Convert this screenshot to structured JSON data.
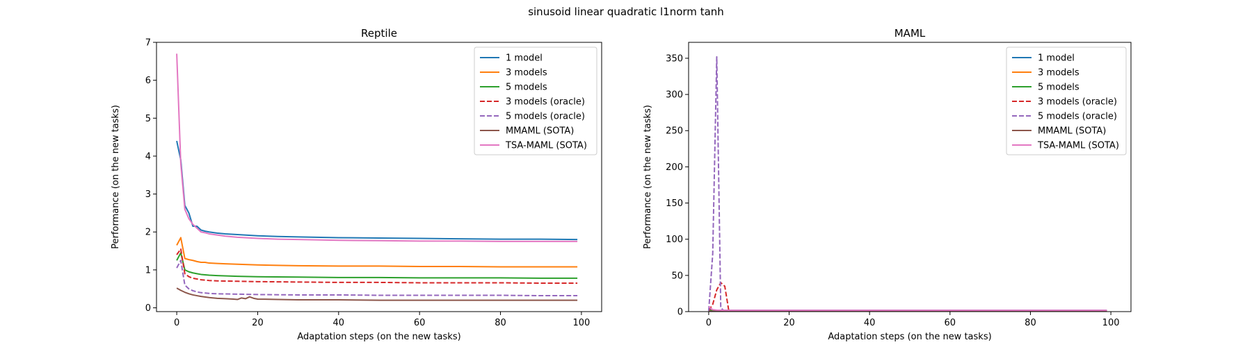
{
  "suptitle": "sinusoid linear quadratic l1norm tanh",
  "chart_data": [
    {
      "type": "line",
      "title": "Reptile",
      "xlabel": "Adaptation steps (on the new tasks)",
      "ylabel": "Performance (on the new tasks)",
      "xlim": [
        -5,
        105
      ],
      "ylim": [
        -0.1,
        7
      ],
      "xticks": [
        0,
        20,
        40,
        60,
        80,
        100
      ],
      "yticks": [
        0,
        1,
        2,
        3,
        4,
        5,
        6,
        7
      ],
      "grid": false,
      "legend_position": "upper right",
      "series": [
        {
          "name": "1 model",
          "color": "#1f77b4",
          "dash": "solid",
          "x": [
            0,
            1,
            2,
            3,
            4,
            5,
            6,
            7,
            8,
            10,
            12,
            15,
            20,
            25,
            30,
            40,
            50,
            60,
            70,
            80,
            90,
            99
          ],
          "y": [
            4.4,
            3.9,
            2.7,
            2.5,
            2.15,
            2.15,
            2.05,
            2.02,
            2.0,
            1.97,
            1.95,
            1.93,
            1.9,
            1.88,
            1.87,
            1.85,
            1.84,
            1.83,
            1.82,
            1.81,
            1.81,
            1.8
          ]
        },
        {
          "name": "3 models",
          "color": "#ff7f0e",
          "dash": "solid",
          "x": [
            0,
            1,
            2,
            3,
            4,
            5,
            6,
            7,
            8,
            10,
            12,
            15,
            20,
            25,
            30,
            40,
            50,
            60,
            70,
            80,
            90,
            99
          ],
          "y": [
            1.65,
            1.85,
            1.3,
            1.27,
            1.25,
            1.22,
            1.2,
            1.2,
            1.18,
            1.17,
            1.16,
            1.15,
            1.13,
            1.12,
            1.11,
            1.1,
            1.1,
            1.09,
            1.09,
            1.08,
            1.08,
            1.08
          ]
        },
        {
          "name": "5 models",
          "color": "#2ca02c",
          "dash": "solid",
          "x": [
            0,
            1,
            2,
            3,
            4,
            5,
            6,
            8,
            10,
            15,
            20,
            30,
            40,
            50,
            60,
            70,
            80,
            90,
            99
          ],
          "y": [
            1.25,
            1.45,
            1.0,
            0.95,
            0.92,
            0.9,
            0.88,
            0.86,
            0.85,
            0.83,
            0.82,
            0.81,
            0.8,
            0.8,
            0.79,
            0.79,
            0.79,
            0.78,
            0.78
          ]
        },
        {
          "name": "3 models (oracle)",
          "color": "#d62728",
          "dash": "dashed",
          "x": [
            0,
            1,
            2,
            3,
            4,
            5,
            6,
            8,
            10,
            15,
            20,
            30,
            40,
            50,
            60,
            70,
            80,
            90,
            99
          ],
          "y": [
            1.4,
            1.55,
            0.9,
            0.82,
            0.78,
            0.76,
            0.74,
            0.72,
            0.71,
            0.7,
            0.69,
            0.68,
            0.67,
            0.67,
            0.66,
            0.66,
            0.66,
            0.65,
            0.65
          ]
        },
        {
          "name": "5 models (oracle)",
          "color": "#9467bd",
          "dash": "dashed",
          "x": [
            0,
            1,
            2,
            3,
            4,
            5,
            6,
            8,
            10,
            15,
            20,
            30,
            40,
            50,
            60,
            70,
            80,
            90,
            99
          ],
          "y": [
            1.05,
            1.25,
            0.6,
            0.5,
            0.45,
            0.42,
            0.4,
            0.38,
            0.37,
            0.36,
            0.35,
            0.34,
            0.34,
            0.33,
            0.33,
            0.33,
            0.33,
            0.32,
            0.32
          ]
        },
        {
          "name": "MMAML (SOTA)",
          "color": "#8c564b",
          "dash": "solid",
          "x": [
            0,
            1,
            2,
            3,
            4,
            5,
            6,
            8,
            10,
            12,
            14,
            15,
            16,
            17,
            18,
            19,
            20,
            25,
            30,
            40,
            50,
            60,
            70,
            80,
            90,
            99
          ],
          "y": [
            0.52,
            0.46,
            0.41,
            0.37,
            0.34,
            0.32,
            0.3,
            0.27,
            0.25,
            0.24,
            0.23,
            0.22,
            0.26,
            0.24,
            0.29,
            0.25,
            0.23,
            0.22,
            0.21,
            0.21,
            0.2,
            0.2,
            0.2,
            0.2,
            0.2,
            0.2
          ]
        },
        {
          "name": "TSA-MAML (SOTA)",
          "color": "#e377c2",
          "dash": "solid",
          "x": [
            0,
            1,
            2,
            3,
            4,
            5,
            6,
            7,
            8,
            10,
            12,
            15,
            20,
            25,
            30,
            40,
            50,
            60,
            70,
            80,
            90,
            99
          ],
          "y": [
            6.7,
            3.8,
            2.6,
            2.35,
            2.2,
            2.1,
            2.0,
            1.98,
            1.95,
            1.92,
            1.89,
            1.86,
            1.83,
            1.81,
            1.8,
            1.78,
            1.77,
            1.76,
            1.76,
            1.75,
            1.75,
            1.75
          ]
        }
      ]
    },
    {
      "type": "line",
      "title": "MAML",
      "xlabel": "Adaptation steps (on the new tasks)",
      "ylabel": "Performance (on the new tasks)",
      "xlim": [
        -5,
        105
      ],
      "ylim": [
        0,
        372
      ],
      "xticks": [
        0,
        20,
        40,
        60,
        80,
        100
      ],
      "yticks": [
        0,
        50,
        100,
        150,
        200,
        250,
        300,
        350
      ],
      "grid": false,
      "legend_position": "upper right",
      "series": [
        {
          "name": "1 model",
          "color": "#1f77b4",
          "dash": "solid",
          "x": [
            0,
            1,
            2,
            3,
            4,
            5,
            10,
            20,
            50,
            99
          ],
          "y": [
            4.4,
            2.0,
            1.8,
            1.8,
            1.8,
            1.8,
            1.8,
            1.8,
            1.8,
            1.8
          ]
        },
        {
          "name": "3 models",
          "color": "#ff7f0e",
          "dash": "solid",
          "x": [
            0,
            1,
            2,
            3,
            4,
            5,
            10,
            20,
            50,
            99
          ],
          "y": [
            1.6,
            1.5,
            1.2,
            1.1,
            1.1,
            1.1,
            1.1,
            1.1,
            1.1,
            1.1
          ]
        },
        {
          "name": "5 models",
          "color": "#2ca02c",
          "dash": "solid",
          "x": [
            0,
            1,
            2,
            3,
            4,
            5,
            10,
            20,
            50,
            99
          ],
          "y": [
            1.2,
            1.1,
            0.9,
            0.8,
            0.8,
            0.8,
            0.8,
            0.8,
            0.8,
            0.8
          ]
        },
        {
          "name": "3 models (oracle)",
          "color": "#d62728",
          "dash": "dashed",
          "x": [
            0,
            1,
            2,
            3,
            4,
            5,
            10,
            20,
            50,
            99
          ],
          "y": [
            1.4,
            10,
            30,
            40,
            35,
            1,
            0.7,
            0.7,
            0.7,
            0.7
          ]
        },
        {
          "name": "5 models (oracle)",
          "color": "#9467bd",
          "dash": "dashed",
          "x": [
            0,
            1,
            2,
            3,
            4,
            5,
            10,
            20,
            50,
            99
          ],
          "y": [
            1,
            80,
            352,
            5,
            0.5,
            0.4,
            0.3,
            0.3,
            0.3,
            0.3
          ]
        },
        {
          "name": "MMAML (SOTA)",
          "color": "#8c564b",
          "dash": "solid",
          "x": [
            0,
            1,
            2,
            3,
            4,
            5,
            10,
            20,
            50,
            99
          ],
          "y": [
            0.5,
            0.4,
            0.35,
            0.3,
            0.3,
            0.3,
            0.25,
            0.2,
            0.2,
            0.2
          ]
        },
        {
          "name": "TSA-MAML (SOTA)",
          "color": "#e377c2",
          "dash": "solid",
          "x": [
            0,
            1,
            2,
            3,
            4,
            5,
            10,
            20,
            50,
            99
          ],
          "y": [
            6.7,
            2.6,
            2.0,
            1.9,
            1.85,
            1.8,
            1.8,
            1.8,
            1.75,
            1.75
          ]
        }
      ]
    }
  ]
}
